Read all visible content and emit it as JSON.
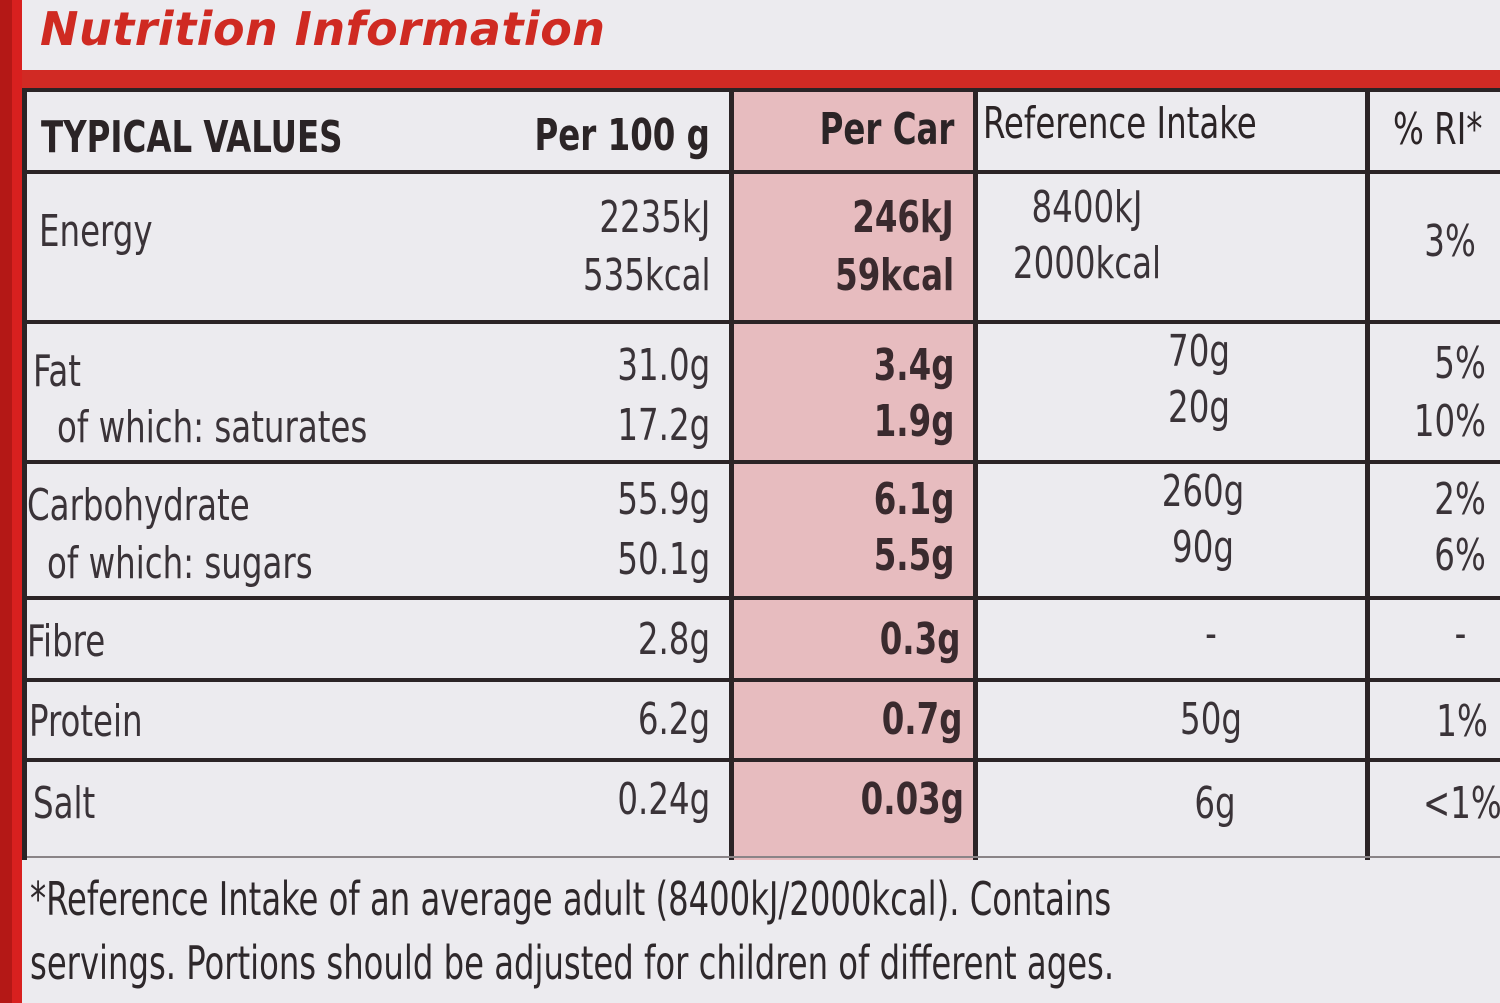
{
  "title": "Nutrition Information",
  "headers": {
    "typical": "TYPICAL VALUES",
    "per100": "Per 100 g",
    "perServe": "Per Car",
    "ri": "Reference Intake",
    "pct": "% RI*"
  },
  "rows": {
    "energy": {
      "label": "Energy",
      "per100_kj": "2235kJ",
      "per100_kcal": "535kcal",
      "serve_kj": "246kJ",
      "serve_kcal": "59kcal",
      "ri_kj": "8400kJ",
      "ri_kcal": "2000kcal",
      "pct": "3%"
    },
    "fat": {
      "label": "Fat",
      "per100": "31.0g",
      "serve": "3.4g",
      "ri": "70g",
      "pct": "5%"
    },
    "saturates": {
      "label": "of which: saturates",
      "per100": "17.2g",
      "serve": "1.9g",
      "ri": "20g",
      "pct": "10%"
    },
    "carbohydrate": {
      "label": "Carbohydrate",
      "per100": "55.9g",
      "serve": "6.1g",
      "ri": "260g",
      "pct": "2%"
    },
    "sugars": {
      "label": "of which: sugars",
      "per100": "50.1g",
      "serve": "5.5g",
      "ri": "90g",
      "pct": "6%"
    },
    "fibre": {
      "label": "Fibre",
      "per100": "2.8g",
      "serve": "0.3g",
      "ri": "-",
      "pct": "-"
    },
    "protein": {
      "label": "Protein",
      "per100": "6.2g",
      "serve": "0.7g",
      "ri": "50g",
      "pct": "1%"
    },
    "salt": {
      "label": "Salt",
      "per100": "0.24g",
      "serve": "0.03g",
      "ri": "6g",
      "pct": "<1%"
    }
  },
  "footnote": {
    "line1": "*Reference Intake of an average adult (8400kJ/2000kcal). Contains",
    "line2": "servings. Portions should be adjusted for children of different ages."
  },
  "colors": {
    "brand_red": "#d12a24",
    "highlight": "#e7bcbf",
    "rule": "#2b2426"
  }
}
